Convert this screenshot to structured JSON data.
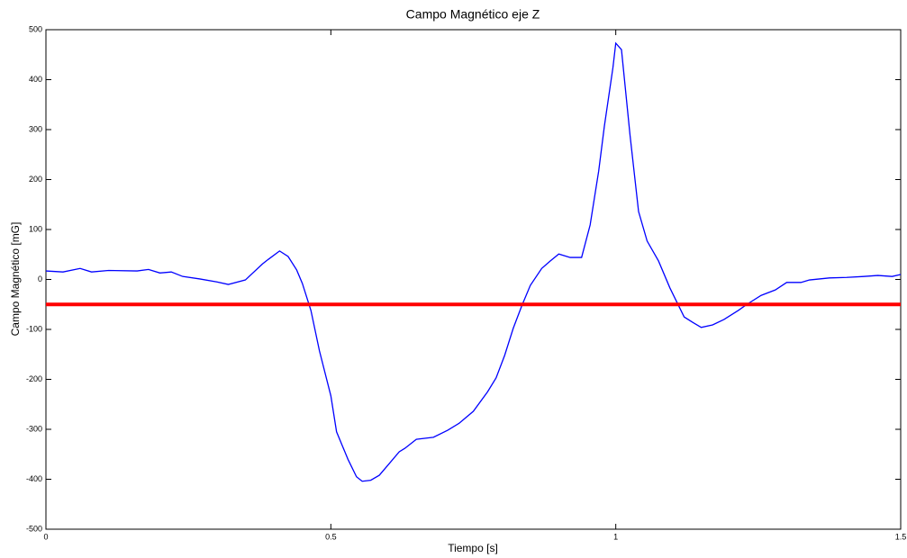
{
  "chart_data": {
    "type": "line",
    "title": "Campo Magnético eje Z",
    "xlabel": "Tiempo [s]",
    "ylabel": "Campo Magnético [mG]",
    "x": [
      0,
      0.03,
      0.06,
      0.08,
      0.11,
      0.16,
      0.18,
      0.2,
      0.22,
      0.24,
      0.27,
      0.3,
      0.32,
      0.35,
      0.38,
      0.39,
      0.41,
      0.425,
      0.44,
      0.45,
      0.465,
      0.48,
      0.5,
      0.51,
      0.53,
      0.545,
      0.555,
      0.57,
      0.585,
      0.6,
      0.62,
      0.63,
      0.65,
      0.68,
      0.705,
      0.725,
      0.75,
      0.775,
      0.79,
      0.805,
      0.82,
      0.835,
      0.85,
      0.87,
      0.885,
      0.9,
      0.92,
      0.94,
      0.955,
      0.97,
      0.98,
      0.995,
      1.0,
      1.01,
      1.025,
      1.04,
      1.055,
      1.075,
      1.095,
      1.12,
      1.135,
      1.15,
      1.17,
      1.19,
      1.215,
      1.23,
      1.255,
      1.28,
      1.3,
      1.325,
      1.34,
      1.375,
      1.405,
      1.435,
      1.46,
      1.485,
      1.5
    ],
    "series": [
      {
        "color": "#0000ff",
        "values": [
          17,
          15,
          22,
          15,
          18,
          17,
          20,
          13,
          15,
          6,
          1,
          -5,
          -10,
          -1,
          31,
          40,
          57,
          46,
          19,
          -8,
          -62,
          -143,
          -233,
          -305,
          -360,
          -395,
          -404,
          -402,
          -392,
          -372,
          -345,
          -338,
          -320,
          -316,
          -302,
          -288,
          -264,
          -225,
          -197,
          -152,
          -98,
          -53,
          -12,
          22,
          37,
          51,
          44,
          44,
          109,
          217,
          307,
          424,
          473,
          460,
          289,
          136,
          77,
          37,
          -17,
          -75,
          -86,
          -96,
          -91,
          -80,
          -62,
          -50,
          -32,
          -21,
          -6,
          -6,
          -1,
          3,
          4,
          6,
          8,
          6,
          10
        ]
      }
    ],
    "threshold": {
      "value": -50,
      "color": "#ff0000"
    },
    "xlim": [
      0,
      1.5
    ],
    "xticks": [
      0,
      0.5,
      1,
      1.5
    ],
    "ylim": [
      -500,
      500
    ],
    "yticks": [
      -500,
      -400,
      -300,
      -200,
      -100,
      0,
      100,
      200,
      300,
      400,
      500
    ],
    "grid": false
  }
}
